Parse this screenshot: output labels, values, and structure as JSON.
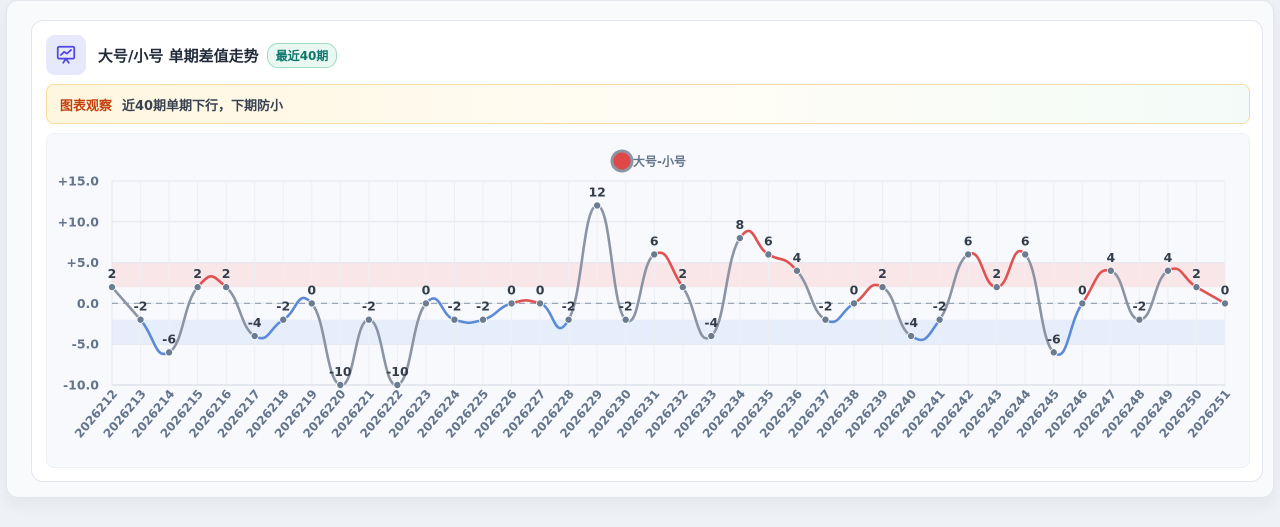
{
  "header": {
    "title": "大号/小号 单期差值走势",
    "badge": "最近40期"
  },
  "observation": {
    "label": "图表观察",
    "text": "近40期单期下行，下期防小"
  },
  "colors": {
    "up": "#e05252",
    "down": "#5b8ad6",
    "flat": "#8a94a3",
    "legend_marker": "#e04848"
  },
  "chart_data": {
    "type": "line",
    "title": "",
    "xlabel": "",
    "ylabel": "",
    "ylim": [
      -10,
      15
    ],
    "yticks": [
      15,
      10,
      5,
      0,
      -5,
      -10
    ],
    "ytick_labels": [
      "+15.0",
      "+10.0",
      "+5.0",
      "0.0",
      "-5.0",
      "-10.0"
    ],
    "bands": [
      {
        "from": 5,
        "to": 2,
        "color": "#f9dfe2"
      },
      {
        "from": -2,
        "to": -5,
        "color": "#e2e9fb"
      }
    ],
    "legend": {
      "position": "top-center",
      "label": "大号-小号"
    },
    "x": [
      "2026212",
      "2026213",
      "2026214",
      "2026215",
      "2026216",
      "2026217",
      "2026218",
      "2026219",
      "2026220",
      "2026221",
      "2026222",
      "2026223",
      "2026224",
      "2026225",
      "2026226",
      "2026227",
      "2026228",
      "2026229",
      "2026230",
      "2026231",
      "2026232",
      "2026233",
      "2026234",
      "2026235",
      "2026236",
      "2026237",
      "2026238",
      "2026239",
      "2026240",
      "2026241",
      "2026242",
      "2026243",
      "2026244",
      "2026245",
      "2026246",
      "2026247",
      "2026248",
      "2026249",
      "2026250",
      "2026251"
    ],
    "series": [
      {
        "name": "大号-小号",
        "values": [
          2,
          -2,
          -6,
          2,
          2,
          -4,
          -2,
          0,
          -10,
          -2,
          -10,
          0,
          -2,
          -2,
          0,
          0,
          -2,
          12,
          -2,
          6,
          2,
          -4,
          8,
          6,
          4,
          -2,
          0,
          2,
          -4,
          -2,
          6,
          2,
          6,
          -6,
          0,
          4,
          -2,
          4,
          2,
          0
        ]
      }
    ]
  }
}
